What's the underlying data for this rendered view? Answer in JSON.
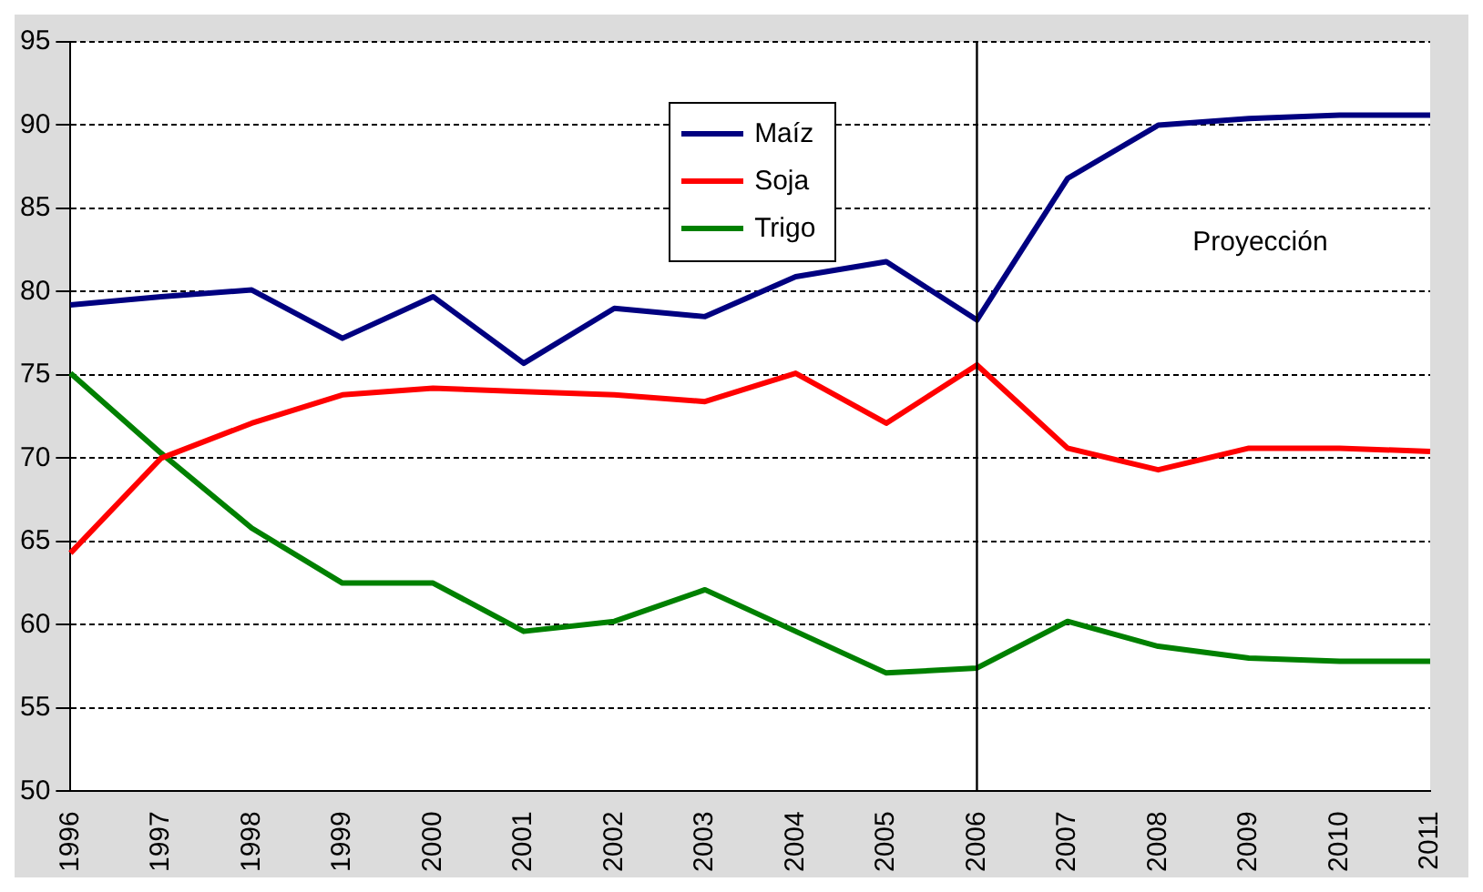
{
  "chart_data": {
    "type": "line",
    "categories": [
      "1996",
      "1997",
      "1998",
      "1999",
      "2000",
      "2001",
      "2002",
      "2003",
      "2004",
      "2005",
      "2006",
      "2007",
      "2008",
      "2009",
      "2010",
      "2011"
    ],
    "series": [
      {
        "name": "Maíz",
        "color": "#000080",
        "values": [
          79.2,
          79.7,
          80.1,
          77.2,
          79.7,
          75.7,
          79.0,
          78.5,
          80.9,
          81.8,
          78.3,
          86.8,
          90.0,
          90.4,
          90.6,
          90.6
        ]
      },
      {
        "name": "Soja",
        "color": "#ff0000",
        "values": [
          64.3,
          70.0,
          72.1,
          73.8,
          74.2,
          74.0,
          73.8,
          73.4,
          75.1,
          72.1,
          75.6,
          70.6,
          69.3,
          70.6,
          70.6,
          70.4
        ]
      },
      {
        "name": "Trigo",
        "color": "#008000",
        "values": [
          75.1,
          70.3,
          65.8,
          62.5,
          62.5,
          59.6,
          60.2,
          62.1,
          59.6,
          57.1,
          57.4,
          60.2,
          58.7,
          58.0,
          57.8,
          57.8
        ]
      }
    ],
    "ylim": [
      50,
      95
    ],
    "yticks": [
      50,
      55,
      60,
      65,
      70,
      75,
      80,
      85,
      90,
      95
    ],
    "grid": "y",
    "legend": "top",
    "marker": "none",
    "line_style": "solid",
    "ref_lines": [
      {
        "axis": "x",
        "value": "2006",
        "color": "#000000"
      }
    ],
    "annotations": [
      "Proyección"
    ]
  }
}
